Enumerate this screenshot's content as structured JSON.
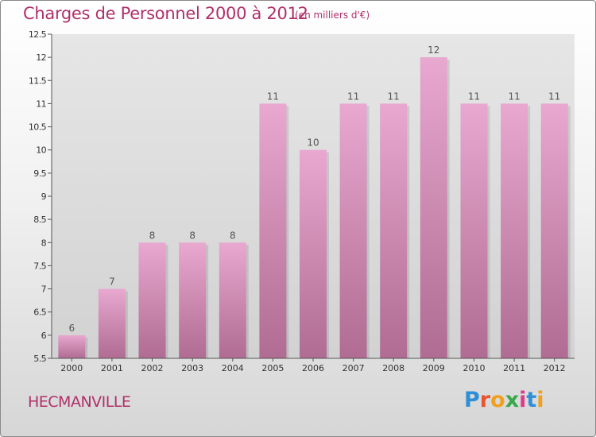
{
  "header": {
    "title": "Charges de Personnel 2000 à 2012",
    "subtitle": "(en milliers d'€)"
  },
  "footer": {
    "commune": "HECMANVILLE",
    "logo_text": "Proxiti",
    "logo_colors": [
      "#2f8fd6",
      "#e8552e",
      "#f0a020",
      "#3aa84a",
      "#e03a8c",
      "#2f8fd6",
      "#f0a020"
    ]
  },
  "colors": {
    "accent": "#b0306a",
    "bar_light": "#e8a8d0",
    "bar_dark": "#b06c92",
    "plot_bg": "#dcdcdc"
  },
  "chart_data": {
    "type": "bar",
    "categories": [
      "2000",
      "2001",
      "2002",
      "2003",
      "2004",
      "2005",
      "2006",
      "2007",
      "2008",
      "2009",
      "2010",
      "2011",
      "2012"
    ],
    "values": [
      6,
      7,
      8,
      8,
      8,
      11,
      10,
      11,
      11,
      12,
      11,
      11,
      11
    ],
    "value_labels": [
      "6",
      "7",
      "8",
      "8",
      "8",
      "11",
      "10",
      "11",
      "11",
      "12",
      "11",
      "11",
      "11"
    ],
    "ylim": [
      5.5,
      12.5
    ],
    "yticks": [
      5.5,
      6,
      6.5,
      7,
      7.5,
      8,
      8.5,
      9,
      9.5,
      10,
      10.5,
      11,
      11.5,
      12,
      12.5
    ],
    "ytick_labels": [
      "5.5",
      "6",
      "6.5",
      "7",
      "7.5",
      "8",
      "8.5",
      "9",
      "9.5",
      "10",
      "10.5",
      "11",
      "11.5",
      "12",
      "12.5"
    ],
    "grid": false
  }
}
